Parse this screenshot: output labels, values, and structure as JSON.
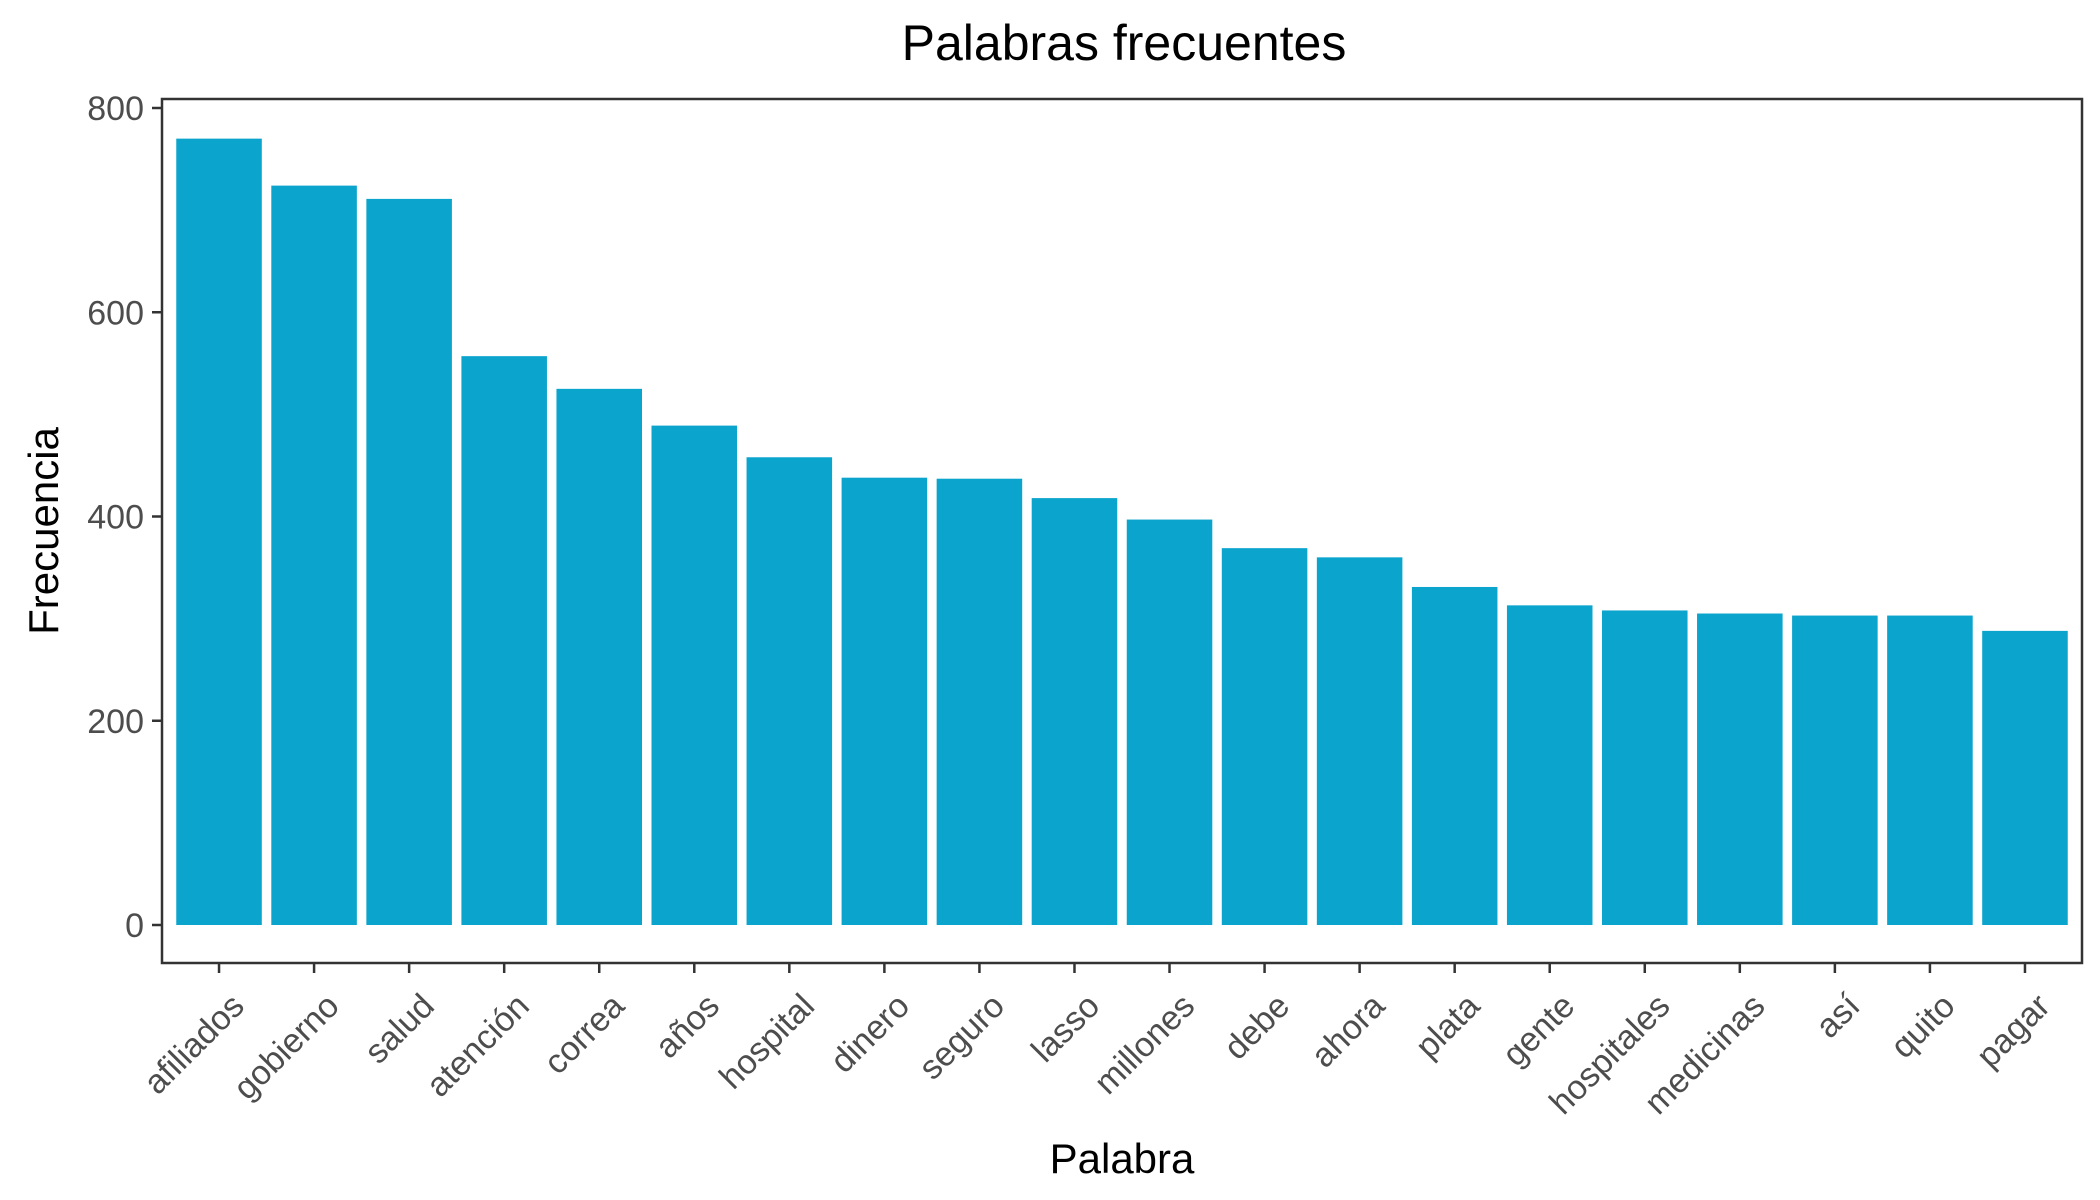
{
  "chart_data": {
    "type": "bar",
    "title": "Palabras frecuentes",
    "xlabel": "Palabra",
    "ylabel": "Frecuencia",
    "ylim": [
      -38,
      800
    ],
    "yticks": [
      0,
      200,
      400,
      600,
      800
    ],
    "yticks_labels": [
      "0",
      "200",
      "400",
      "600",
      "800"
    ],
    "categories": [
      "afiliados",
      "gobierno",
      "salud",
      "atención",
      "correa",
      "años",
      "hospital",
      "dinero",
      "seguro",
      "lasso",
      "millones",
      "debe",
      "ahora",
      "plata",
      "gente",
      "hospitales",
      "medicinas",
      "así",
      "quito",
      "pagar"
    ],
    "values": [
      770,
      724,
      711,
      557,
      525,
      489,
      458,
      438,
      437,
      418,
      397,
      369,
      360,
      331,
      313,
      308,
      305,
      303,
      303,
      288
    ],
    "bar_color": "#0aa4cc",
    "grid": false,
    "legend": "none"
  }
}
